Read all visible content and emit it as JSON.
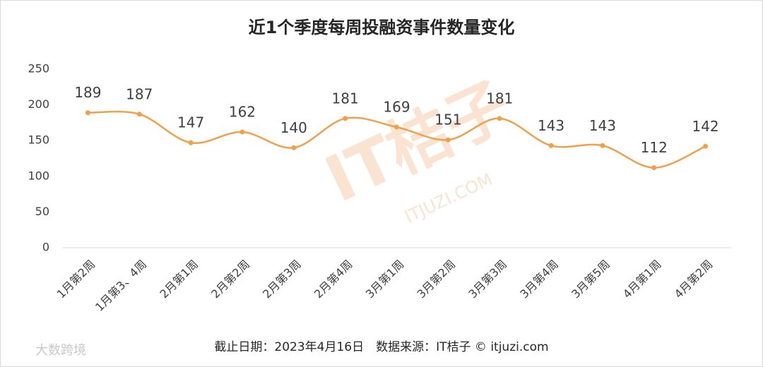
{
  "chart_data": {
    "type": "line",
    "title": "近1个季度每周投融资事件数量变化",
    "categories": [
      "1月第2周",
      "1月第3、4周",
      "2月第1周",
      "2月第2周",
      "2月第3周",
      "2月第4周",
      "3月第1周",
      "3月第2周",
      "3月第3周",
      "3月第4周",
      "3月第5周",
      "4月第1周",
      "4月第2周"
    ],
    "values": [
      189,
      187,
      147,
      162,
      140,
      181,
      169,
      151,
      181,
      143,
      143,
      112,
      142
    ],
    "color": "#f0a04b",
    "ylim": [
      0,
      250
    ],
    "yticks": [
      0,
      50,
      100,
      150,
      200,
      250
    ],
    "grid": false,
    "footnote": "截止日期：2023年4月16日　数据来源：IT桔子 © itjuzi.com",
    "watermarks": [
      "IT桔子",
      "ITJUZI.COM",
      "大数跨境"
    ]
  }
}
